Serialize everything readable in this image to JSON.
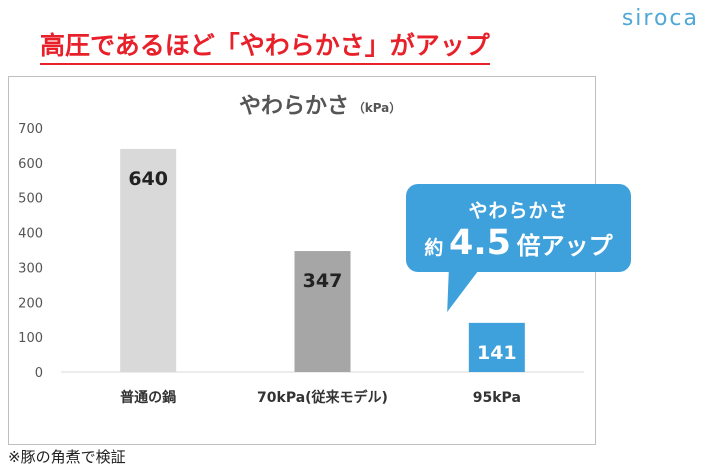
{
  "brand": {
    "logo_text": "siroca",
    "accent": "#4fa8d8"
  },
  "headline": "高圧であるほど「やわらかさ」がアップ",
  "note": "※豚の角煮で検証",
  "callout": {
    "line1": "やわらかさ",
    "prefix": "約",
    "value": "4.5",
    "suffix": "倍アップ",
    "color": "#3ea1db"
  },
  "chart_data": {
    "type": "bar",
    "title": "やわらかさ",
    "unit": "（kPa）",
    "categories": [
      "普通の鍋",
      "70kPa(従来モデル)",
      "95kPa"
    ],
    "values": [
      640,
      347,
      141
    ],
    "data_labels": [
      "640",
      "347",
      "141"
    ],
    "colors": [
      "#d9d9d9",
      "#a6a6a6",
      "#3ea1db"
    ],
    "label_colors": [
      "#222222",
      "#222222",
      "#ffffff"
    ],
    "ylim": [
      0,
      700
    ],
    "yticks": [
      "0",
      "100",
      "200",
      "300",
      "400",
      "500",
      "600",
      "700"
    ],
    "grid": false
  }
}
